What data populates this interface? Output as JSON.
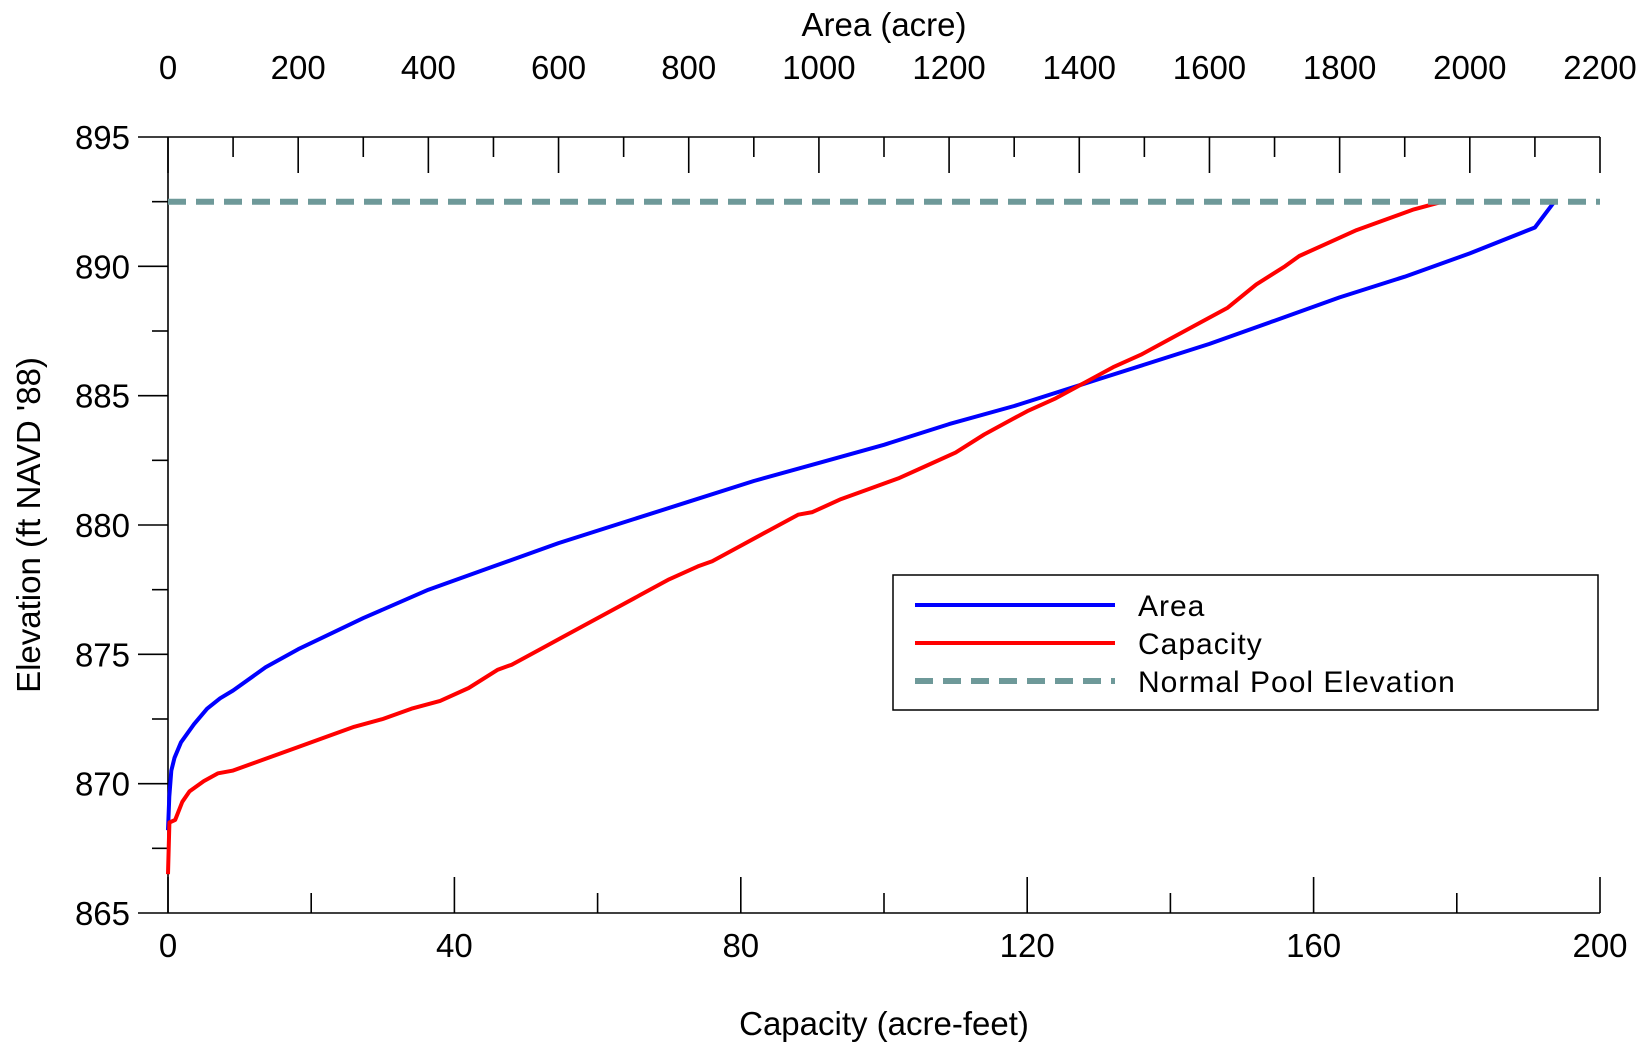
{
  "chart_data": {
    "type": "line",
    "x_bottom": {
      "label": "Capacity (acre-feet)",
      "range": [
        0,
        200
      ],
      "ticks": [
        0,
        40,
        80,
        120,
        160,
        200
      ],
      "minor_step": 20
    },
    "x_top": {
      "label": "Area (acre)",
      "range": [
        0,
        2200
      ],
      "ticks": [
        0,
        200,
        400,
        600,
        800,
        1000,
        1200,
        1400,
        1600,
        1800,
        2000,
        2200
      ],
      "minor_step": 100
    },
    "y": {
      "label": "Elevation (ft NAVD '88)",
      "range": [
        865,
        895
      ],
      "ticks": [
        865,
        870,
        875,
        880,
        885,
        890,
        895
      ],
      "minor_step": 2.5
    },
    "grid": false,
    "legend_position": "right",
    "series": [
      {
        "name": "Area",
        "axis": "top",
        "color": "#0000ff",
        "style": "solid",
        "points": [
          [
            0,
            868.2
          ],
          [
            2,
            869.5
          ],
          [
            5,
            870.5
          ],
          [
            10,
            871.0
          ],
          [
            20,
            871.6
          ],
          [
            40,
            872.3
          ],
          [
            60,
            872.9
          ],
          [
            80,
            873.3
          ],
          [
            100,
            873.6
          ],
          [
            150,
            874.5
          ],
          [
            200,
            875.2
          ],
          [
            300,
            876.4
          ],
          [
            400,
            877.5
          ],
          [
            500,
            878.4
          ],
          [
            600,
            879.3
          ],
          [
            700,
            880.1
          ],
          [
            800,
            880.9
          ],
          [
            900,
            881.7
          ],
          [
            1000,
            882.4
          ],
          [
            1100,
            883.1
          ],
          [
            1200,
            883.9
          ],
          [
            1300,
            884.6
          ],
          [
            1400,
            885.4
          ],
          [
            1500,
            886.2
          ],
          [
            1600,
            887.0
          ],
          [
            1700,
            887.9
          ],
          [
            1800,
            888.8
          ],
          [
            1900,
            889.6
          ],
          [
            2000,
            890.5
          ],
          [
            2100,
            891.5
          ],
          [
            2130,
            892.5
          ]
        ]
      },
      {
        "name": "Capacity",
        "axis": "bottom",
        "color": "#ff0000",
        "style": "solid",
        "points": [
          [
            0,
            866.5
          ],
          [
            0.2,
            868.5
          ],
          [
            1,
            868.6
          ],
          [
            2,
            869.3
          ],
          [
            3,
            869.7
          ],
          [
            5,
            870.1
          ],
          [
            7,
            870.4
          ],
          [
            9,
            870.5
          ],
          [
            12,
            870.8
          ],
          [
            15,
            871.1
          ],
          [
            18,
            871.4
          ],
          [
            22,
            871.8
          ],
          [
            26,
            872.2
          ],
          [
            30,
            872.5
          ],
          [
            34,
            872.9
          ],
          [
            38,
            873.2
          ],
          [
            42,
            873.7
          ],
          [
            46,
            874.4
          ],
          [
            48,
            874.6
          ],
          [
            52,
            875.2
          ],
          [
            56,
            875.8
          ],
          [
            60,
            876.4
          ],
          [
            62,
            876.7
          ],
          [
            66,
            877.3
          ],
          [
            70,
            877.9
          ],
          [
            74,
            878.4
          ],
          [
            76,
            878.6
          ],
          [
            80,
            879.2
          ],
          [
            84,
            879.8
          ],
          [
            88,
            880.4
          ],
          [
            90,
            880.5
          ],
          [
            94,
            881.0
          ],
          [
            98,
            881.4
          ],
          [
            102,
            881.8
          ],
          [
            106,
            882.3
          ],
          [
            110,
            882.8
          ],
          [
            114,
            883.5
          ],
          [
            118,
            884.1
          ],
          [
            120,
            884.4
          ],
          [
            124,
            884.9
          ],
          [
            128,
            885.5
          ],
          [
            132,
            886.1
          ],
          [
            136,
            886.6
          ],
          [
            140,
            887.2
          ],
          [
            144,
            887.8
          ],
          [
            148,
            888.4
          ],
          [
            152,
            889.3
          ],
          [
            156,
            890.0
          ],
          [
            158,
            890.4
          ],
          [
            162,
            890.9
          ],
          [
            166,
            891.4
          ],
          [
            170,
            891.8
          ],
          [
            174,
            892.2
          ],
          [
            178,
            892.5
          ]
        ]
      },
      {
        "name": "Normal Pool Elevation",
        "axis": "bottom",
        "color": "#6e9999",
        "style": "dashed",
        "points": [
          [
            0,
            892.5
          ],
          [
            200,
            892.5
          ]
        ]
      }
    ]
  }
}
